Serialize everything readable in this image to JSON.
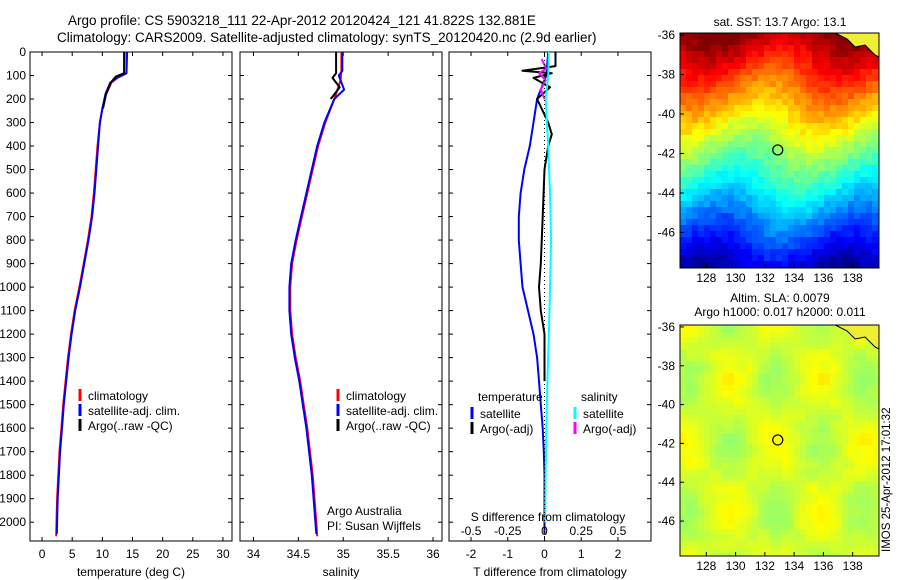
{
  "header": {
    "line1": "Argo profile: CS 5903218_111 22-Apr-2012 20120424_121 41.822S 132.881E",
    "line2": "Climatology: CARS2009. Satellite-adjusted climatology: synTS_20120420.nc (2.9d earlier)"
  },
  "colors": {
    "climatology": "#ff0000",
    "satellite": "#0000ff",
    "argo": "#000000",
    "sal_satellite": "#00ffff",
    "sal_argo": "#ff00ff"
  },
  "footer_credit": "IMOS 25-Apr-2012 17:01:32",
  "chart_data": [
    {
      "type": "line",
      "xlabel": "temperature (deg C)",
      "x_ticks": [
        "0",
        "5",
        "10",
        "15",
        "20",
        "25",
        "30"
      ],
      "xlim": [
        -2,
        31.5
      ],
      "y_ticks": [
        "0",
        "100",
        "200",
        "300",
        "400",
        "500",
        "600",
        "700",
        "800",
        "900",
        "1000",
        "1100",
        "1200",
        "1300",
        "1400",
        "1500",
        "1600",
        "1700",
        "1800",
        "1900",
        "2000"
      ],
      "ylim": [
        0,
        2080
      ],
      "legend": [
        "climatology",
        "satellite-adj. clim.",
        "Argo(..raw -QC)"
      ],
      "series": [
        {
          "name": "climatology",
          "color": "#ff0000",
          "points": [
            [
              14,
              0
            ],
            [
              14,
              90
            ],
            [
              12.5,
              110
            ],
            [
              11.5,
              130
            ],
            [
              10.6,
              180
            ],
            [
              10,
              240
            ],
            [
              9.6,
              300
            ],
            [
              9.2,
              400
            ],
            [
              8.9,
              500
            ],
            [
              8.6,
              600
            ],
            [
              8.2,
              700
            ],
            [
              7.6,
              800
            ],
            [
              6.9,
              900
            ],
            [
              6.2,
              1000
            ],
            [
              5.4,
              1100
            ],
            [
              4.8,
              1200
            ],
            [
              4.3,
              1300
            ],
            [
              3.9,
              1400
            ],
            [
              3.5,
              1500
            ],
            [
              3.2,
              1600
            ],
            [
              2.9,
              1700
            ],
            [
              2.7,
              1800
            ],
            [
              2.5,
              1900
            ],
            [
              2.4,
              2000
            ],
            [
              2.35,
              2060
            ]
          ]
        },
        {
          "name": "satellite-adj. clim.",
          "color": "#0000ff",
          "points": [
            [
              14.1,
              0
            ],
            [
              14,
              90
            ],
            [
              12.4,
              110
            ],
            [
              11.3,
              130
            ],
            [
              10.5,
              180
            ],
            [
              10,
              240
            ],
            [
              9.6,
              300
            ],
            [
              9.3,
              400
            ],
            [
              9,
              500
            ],
            [
              8.7,
              600
            ],
            [
              8.3,
              700
            ],
            [
              7.7,
              800
            ],
            [
              7,
              900
            ],
            [
              6.3,
              1000
            ],
            [
              5.5,
              1100
            ],
            [
              4.9,
              1200
            ],
            [
              4.4,
              1300
            ],
            [
              4,
              1400
            ],
            [
              3.6,
              1500
            ],
            [
              3.3,
              1600
            ],
            [
              3,
              1700
            ],
            [
              2.8,
              1800
            ],
            [
              2.6,
              1900
            ],
            [
              2.5,
              2000
            ],
            [
              2.45,
              2050
            ]
          ]
        },
        {
          "name": "Argo(..raw -QC)",
          "color": "#000000",
          "points": [
            [
              13.6,
              0
            ],
            [
              13.6,
              90
            ],
            [
              12.2,
              105
            ],
            [
              11.4,
              130
            ],
            [
              10.6,
              180
            ],
            [
              10.1,
              240
            ]
          ]
        }
      ]
    },
    {
      "type": "line",
      "xlabel": "salinity",
      "x_ticks": [
        "34",
        "34.5",
        "35",
        "35.5",
        "36"
      ],
      "xlim": [
        33.85,
        36.1
      ],
      "ylim": [
        0,
        2080
      ],
      "legend": [
        "climatology",
        "satellite-adj. clim.",
        "Argo(..raw -QC)"
      ],
      "annotation": [
        "Argo Australia",
        "PI: Susan Wijffels"
      ],
      "series": [
        {
          "name": "climatology",
          "color": "#ff0000",
          "points": [
            [
              34.98,
              0
            ],
            [
              34.98,
              80
            ],
            [
              34.97,
              120
            ],
            [
              34.9,
              200
            ],
            [
              34.8,
              300
            ],
            [
              34.72,
              400
            ],
            [
              34.66,
              500
            ],
            [
              34.6,
              600
            ],
            [
              34.54,
              700
            ],
            [
              34.48,
              800
            ],
            [
              34.43,
              900
            ],
            [
              34.41,
              1000
            ],
            [
              34.41,
              1100
            ],
            [
              34.43,
              1200
            ],
            [
              34.47,
              1300
            ],
            [
              34.52,
              1400
            ],
            [
              34.56,
              1500
            ],
            [
              34.6,
              1600
            ],
            [
              34.63,
              1700
            ],
            [
              34.66,
              1800
            ],
            [
              34.68,
              1900
            ],
            [
              34.7,
              2000
            ],
            [
              34.71,
              2060
            ]
          ]
        },
        {
          "name": "satellite-adj. clim.",
          "color": "#0000ff",
          "points": [
            [
              34.99,
              0
            ],
            [
              34.99,
              80
            ],
            [
              34.95,
              100
            ],
            [
              35.01,
              160
            ],
            [
              34.9,
              200
            ],
            [
              34.79,
              300
            ],
            [
              34.71,
              400
            ],
            [
              34.65,
              500
            ],
            [
              34.59,
              600
            ],
            [
              34.53,
              700
            ],
            [
              34.47,
              800
            ],
            [
              34.42,
              900
            ],
            [
              34.4,
              1000
            ],
            [
              34.4,
              1100
            ],
            [
              34.42,
              1200
            ],
            [
              34.46,
              1300
            ],
            [
              34.51,
              1400
            ],
            [
              34.55,
              1500
            ],
            [
              34.59,
              1600
            ],
            [
              34.62,
              1700
            ],
            [
              34.65,
              1800
            ],
            [
              34.67,
              1900
            ],
            [
              34.69,
              2000
            ],
            [
              34.7,
              2050
            ]
          ]
        },
        {
          "name": "Argo(..raw -QC)",
          "color": "#000000",
          "points": [
            [
              34.92,
              0
            ],
            [
              34.92,
              90
            ],
            [
              34.88,
              110
            ],
            [
              34.96,
              150
            ],
            [
              34.86,
              200
            ]
          ]
        }
      ]
    },
    {
      "type": "line",
      "xlabel": "T difference from climatology",
      "xlabel_top": "S difference from climatology",
      "x_ticks": [
        "-2",
        "-1",
        "0",
        "1",
        "2"
      ],
      "x_ticks_top": [
        "-0.5",
        "-0.25",
        "0",
        "0.25",
        "0.5"
      ],
      "xlim": [
        -2.6,
        2.9
      ],
      "ylim": [
        0,
        2080
      ],
      "legend_left_title": "temperature",
      "legend_right_title": "salinity",
      "legend_left": [
        "satellite",
        "Argo(-adj)"
      ],
      "legend_right": [
        "satellite",
        "Argo(-adj)"
      ],
      "series": [
        {
          "name": "T satellite",
          "color": "#0000ff",
          "points": [
            [
              0.1,
              0
            ],
            [
              0.05,
              100
            ],
            [
              -0.2,
              200
            ],
            [
              -0.3,
              300
            ],
            [
              -0.4,
              400
            ],
            [
              -0.55,
              500
            ],
            [
              -0.65,
              600
            ],
            [
              -0.7,
              700
            ],
            [
              -0.7,
              800
            ],
            [
              -0.65,
              900
            ],
            [
              -0.6,
              1000
            ],
            [
              -0.45,
              1100
            ],
            [
              -0.3,
              1200
            ],
            [
              -0.2,
              1300
            ],
            [
              -0.15,
              1400
            ],
            [
              -0.1,
              1500
            ],
            [
              -0.05,
              1600
            ],
            [
              -0.02,
              1700
            ],
            [
              0,
              1800
            ],
            [
              0,
              1900
            ],
            [
              0,
              2000
            ],
            [
              0,
              2050
            ]
          ]
        },
        {
          "name": "T Argo(-adj)",
          "color": "#000000",
          "points": [
            [
              0.3,
              0
            ],
            [
              0.3,
              60
            ],
            [
              -0.6,
              80
            ],
            [
              0.2,
              90
            ],
            [
              -0.3,
              110
            ],
            [
              0.15,
              150
            ],
            [
              -0.2,
              200
            ],
            [
              0.1,
              300
            ],
            [
              0.2,
              350
            ],
            [
              0.1,
              400
            ],
            [
              0,
              500
            ],
            [
              -0.05,
              700
            ],
            [
              -0.1,
              900
            ],
            [
              -0.15,
              1000
            ],
            [
              -0.1,
              1100
            ],
            [
              0,
              1200
            ],
            [
              0,
              1400
            ]
          ]
        },
        {
          "name": "S satellite",
          "color": "#00ffff",
          "points": [
            [
              0.12,
              0
            ],
            [
              0.1,
              100
            ],
            [
              0.03,
              200
            ],
            [
              0.1,
              400
            ],
            [
              0.15,
              600
            ],
            [
              0.18,
              800
            ],
            [
              0.15,
              1000
            ],
            [
              0.12,
              1200
            ],
            [
              0.08,
              1400
            ],
            [
              0.05,
              1600
            ],
            [
              0.03,
              1800
            ],
            [
              0.02,
              2000
            ]
          ]
        },
        {
          "name": "S Argo(-adj)",
          "color": "#ff00ff",
          "points": [
            [
              -0.08,
              30
            ],
            [
              0.05,
              70
            ],
            [
              -0.15,
              90
            ],
            [
              0.03,
              120
            ],
            [
              -0.1,
              160
            ],
            [
              0,
              200
            ]
          ]
        }
      ]
    },
    {
      "type": "heatmap",
      "title": "sat. SST: 13.7 Argo: 13.1",
      "x_ticks": [
        "128",
        "130",
        "132",
        "134",
        "136",
        "138"
      ],
      "y_ticks": [
        "-36",
        "-38",
        "-40",
        "-42",
        "-44",
        "-46"
      ],
      "xlim": [
        126.2,
        139.8
      ],
      "ylim": [
        -47.8,
        -35.9
      ],
      "marker": [
        132.881,
        -41.822
      ]
    },
    {
      "type": "heatmap",
      "title_line1": "Altim. SLA: 0.0079",
      "title_line2": "Argo h1000: 0.017 h2000: 0.011",
      "x_ticks": [
        "128",
        "130",
        "132",
        "134",
        "136",
        "138"
      ],
      "y_ticks": [
        "-36",
        "-38",
        "-40",
        "-42",
        "-44",
        "-46"
      ],
      "xlim": [
        126.2,
        139.8
      ],
      "ylim": [
        -47.8,
        -35.9
      ],
      "marker": [
        132.881,
        -41.822
      ]
    }
  ]
}
